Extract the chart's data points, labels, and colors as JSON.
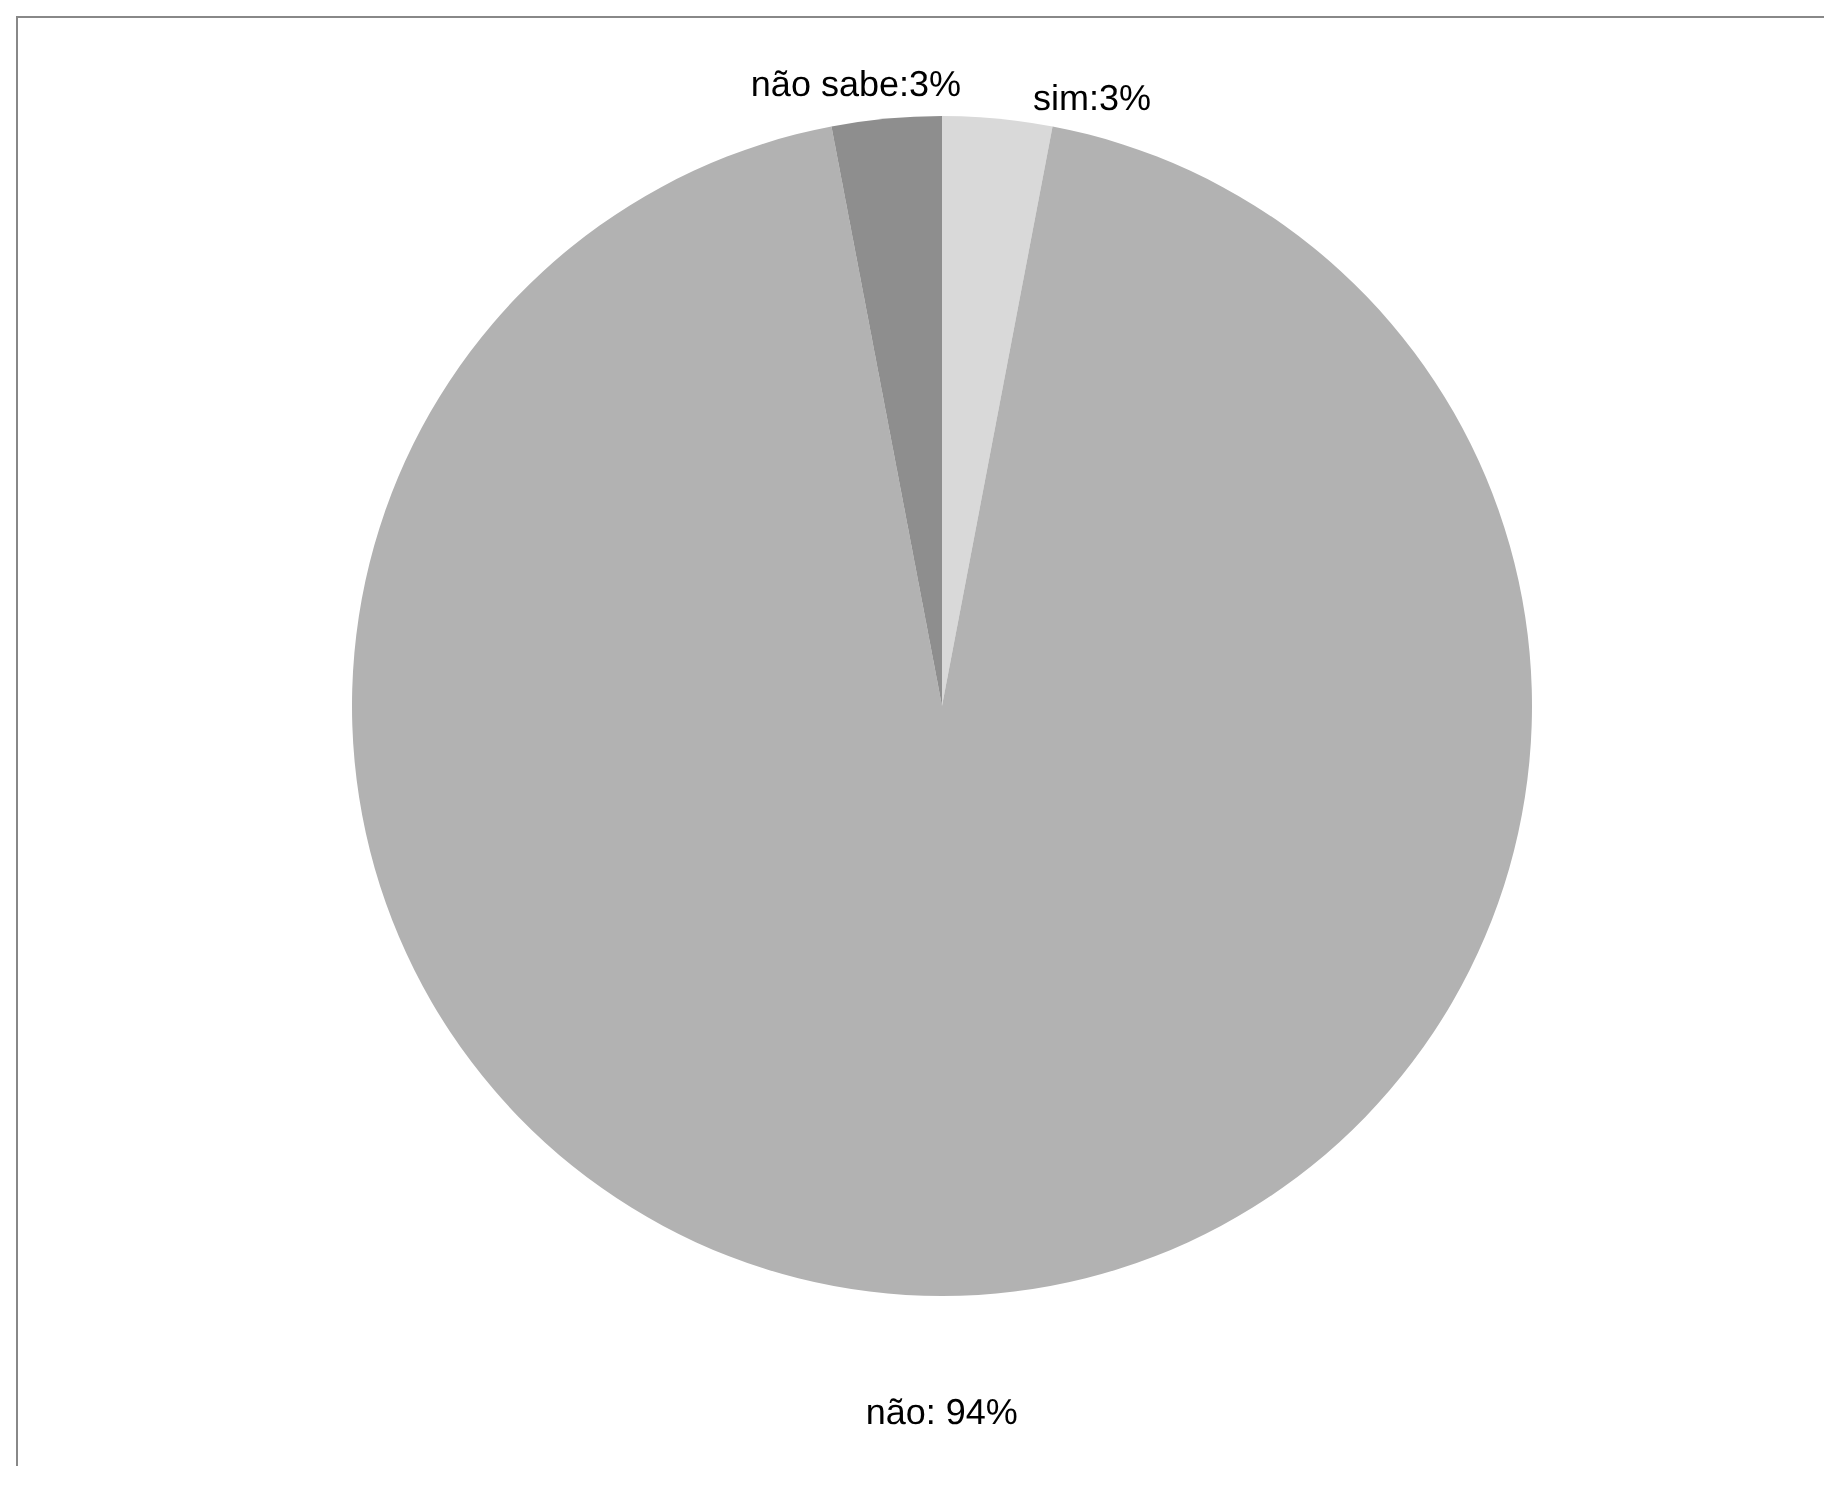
{
  "chart_data": {
    "type": "pie",
    "categories": [
      "sim",
      "não",
      "não sabe"
    ],
    "values": [
      3,
      94,
      3
    ],
    "colors": [
      "#d9d9d9",
      "#b2b2b2",
      "#8e8e8e"
    ],
    "value_labels": [
      ":3%",
      ": 94%",
      ":3%"
    ]
  }
}
